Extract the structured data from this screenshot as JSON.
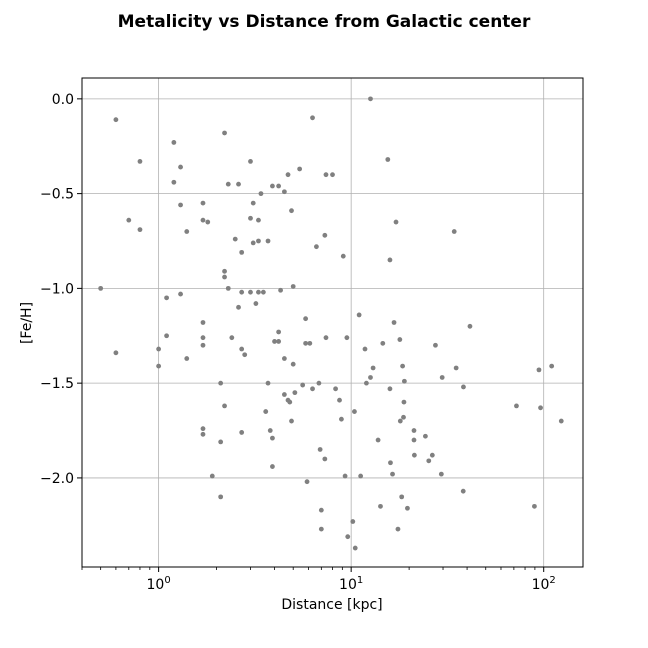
{
  "chart_data": {
    "type": "scatter",
    "title": "Metalicity vs Distance from Galactic center",
    "xlabel": "Distance [kpc]",
    "ylabel": "[Fe/H]",
    "x_scale": "log",
    "xlim": [
      0.4,
      160
    ],
    "ylim": [
      -2.47,
      0.11
    ],
    "grid": true,
    "marker_color": "#808080",
    "x_ticks": [
      {
        "value": 1,
        "base": "10",
        "exp": "0"
      },
      {
        "value": 10,
        "base": "10",
        "exp": "1"
      },
      {
        "value": 100,
        "base": "10",
        "exp": "2"
      }
    ],
    "y_ticks": [
      {
        "value": 0.0,
        "label": "0.0"
      },
      {
        "value": -0.5,
        "label": "−0.5"
      },
      {
        "value": -1.0,
        "label": "−1.0"
      },
      {
        "value": -1.5,
        "label": "−1.5"
      },
      {
        "value": -2.0,
        "label": "−2.0"
      }
    ],
    "points": [
      [
        0.5,
        -1.0
      ],
      [
        0.6,
        -0.11
      ],
      [
        0.6,
        -1.34
      ],
      [
        0.7,
        -0.64
      ],
      [
        0.8,
        -0.33
      ],
      [
        0.8,
        -0.69
      ],
      [
        1.0,
        -1.32
      ],
      [
        1.0,
        -1.41
      ],
      [
        1.1,
        -1.05
      ],
      [
        1.1,
        -1.25
      ],
      [
        1.2,
        -0.23
      ],
      [
        1.2,
        -0.44
      ],
      [
        1.3,
        -0.36
      ],
      [
        1.3,
        -0.56
      ],
      [
        1.3,
        -1.03
      ],
      [
        1.4,
        -0.7
      ],
      [
        1.4,
        -1.37
      ],
      [
        1.7,
        -0.55
      ],
      [
        1.7,
        -0.64
      ],
      [
        1.7,
        -1.18
      ],
      [
        1.7,
        -1.26
      ],
      [
        1.7,
        -1.3
      ],
      [
        1.7,
        -1.74
      ],
      [
        1.7,
        -1.77
      ],
      [
        1.8,
        -0.65
      ],
      [
        1.9,
        -1.99
      ],
      [
        2.1,
        -1.5
      ],
      [
        2.1,
        -1.81
      ],
      [
        2.1,
        -2.1
      ],
      [
        2.2,
        -0.18
      ],
      [
        2.2,
        -0.91
      ],
      [
        2.2,
        -0.94
      ],
      [
        2.2,
        -1.62
      ],
      [
        2.3,
        -0.45
      ],
      [
        2.3,
        -1.0
      ],
      [
        2.4,
        -1.26
      ],
      [
        2.5,
        -0.74
      ],
      [
        2.6,
        -0.45
      ],
      [
        2.6,
        -1.1
      ],
      [
        2.7,
        -0.81
      ],
      [
        2.7,
        -1.02
      ],
      [
        2.7,
        -1.32
      ],
      [
        2.7,
        -1.76
      ],
      [
        2.8,
        -1.35
      ],
      [
        3.0,
        -0.33
      ],
      [
        3.0,
        -0.63
      ],
      [
        3.0,
        -1.02
      ],
      [
        3.1,
        -0.55
      ],
      [
        3.1,
        -0.76
      ],
      [
        3.2,
        -1.08
      ],
      [
        3.3,
        -0.64
      ],
      [
        3.3,
        -0.75
      ],
      [
        3.3,
        -1.02
      ],
      [
        3.4,
        -0.5
      ],
      [
        3.5,
        -1.02
      ],
      [
        3.6,
        -1.65
      ],
      [
        3.7,
        -0.75
      ],
      [
        3.7,
        -1.5
      ],
      [
        3.8,
        -1.75
      ],
      [
        3.9,
        -0.46
      ],
      [
        3.9,
        -1.79
      ],
      [
        3.9,
        -1.94
      ],
      [
        4.0,
        -1.28
      ],
      [
        4.2,
        -0.46
      ],
      [
        4.2,
        -1.23
      ],
      [
        4.2,
        -1.28
      ],
      [
        4.3,
        -1.01
      ],
      [
        4.5,
        -0.49
      ],
      [
        4.5,
        -1.37
      ],
      [
        4.5,
        -1.56
      ],
      [
        4.7,
        -0.4
      ],
      [
        4.7,
        -1.59
      ],
      [
        4.8,
        -1.6
      ],
      [
        4.9,
        -0.59
      ],
      [
        4.9,
        -1.7
      ],
      [
        5.0,
        -0.99
      ],
      [
        5.0,
        -1.4
      ],
      [
        5.1,
        -1.55
      ],
      [
        5.4,
        -0.37
      ],
      [
        5.6,
        -1.51
      ],
      [
        5.8,
        -1.29
      ],
      [
        5.8,
        -1.16
      ],
      [
        5.9,
        -2.02
      ],
      [
        6.1,
        -1.29
      ],
      [
        6.3,
        -0.1
      ],
      [
        6.3,
        -1.53
      ],
      [
        6.6,
        -0.78
      ],
      [
        6.8,
        -1.5
      ],
      [
        6.9,
        -1.85
      ],
      [
        7.0,
        -2.17
      ],
      [
        7.0,
        -2.27
      ],
      [
        7.3,
        -0.72
      ],
      [
        7.3,
        -1.9
      ],
      [
        7.4,
        -0.4
      ],
      [
        7.4,
        -1.26
      ],
      [
        8.0,
        -0.4
      ],
      [
        8.3,
        -1.53
      ],
      [
        8.7,
        -1.59
      ],
      [
        8.9,
        -1.69
      ],
      [
        9.1,
        -0.83
      ],
      [
        9.3,
        -1.99
      ],
      [
        9.5,
        -1.26
      ],
      [
        9.6,
        -2.31
      ],
      [
        10.2,
        -2.23
      ],
      [
        10.4,
        -1.65
      ],
      [
        10.5,
        -2.37
      ],
      [
        11.0,
        -1.14
      ],
      [
        11.2,
        -1.99
      ],
      [
        11.8,
        -1.32
      ],
      [
        12.0,
        -1.5
      ],
      [
        12.6,
        0.0
      ],
      [
        12.6,
        -1.47
      ],
      [
        13.0,
        -1.42
      ],
      [
        13.8,
        -1.8
      ],
      [
        14.2,
        -2.15
      ],
      [
        14.6,
        -1.29
      ],
      [
        15.5,
        -0.32
      ],
      [
        15.9,
        -0.85
      ],
      [
        15.9,
        -1.53
      ],
      [
        16.0,
        -1.92
      ],
      [
        16.4,
        -1.98
      ],
      [
        16.7,
        -1.18
      ],
      [
        17.1,
        -0.65
      ],
      [
        17.5,
        -2.27
      ],
      [
        17.9,
        -1.27
      ],
      [
        18.0,
        -1.7
      ],
      [
        18.3,
        -2.1
      ],
      [
        18.5,
        -1.41
      ],
      [
        18.7,
        -1.68
      ],
      [
        18.8,
        -1.6
      ],
      [
        18.9,
        -1.49
      ],
      [
        19.6,
        -2.16
      ],
      [
        21.2,
        -1.75
      ],
      [
        21.2,
        -1.8
      ],
      [
        21.3,
        -1.88
      ],
      [
        24.3,
        -1.78
      ],
      [
        25.3,
        -1.91
      ],
      [
        26.4,
        -1.88
      ],
      [
        27.4,
        -1.3
      ],
      [
        29.4,
        -1.98
      ],
      [
        29.7,
        -1.47
      ],
      [
        34.3,
        -0.7
      ],
      [
        35.1,
        -1.42
      ],
      [
        38.2,
        -2.07
      ],
      [
        38.3,
        -1.52
      ],
      [
        41.4,
        -1.2
      ],
      [
        72.2,
        -1.62
      ],
      [
        89.5,
        -2.15
      ],
      [
        94.5,
        -1.43
      ],
      [
        96.3,
        -1.63
      ],
      [
        110.0,
        -1.41
      ],
      [
        123.4,
        -1.7
      ]
    ]
  }
}
